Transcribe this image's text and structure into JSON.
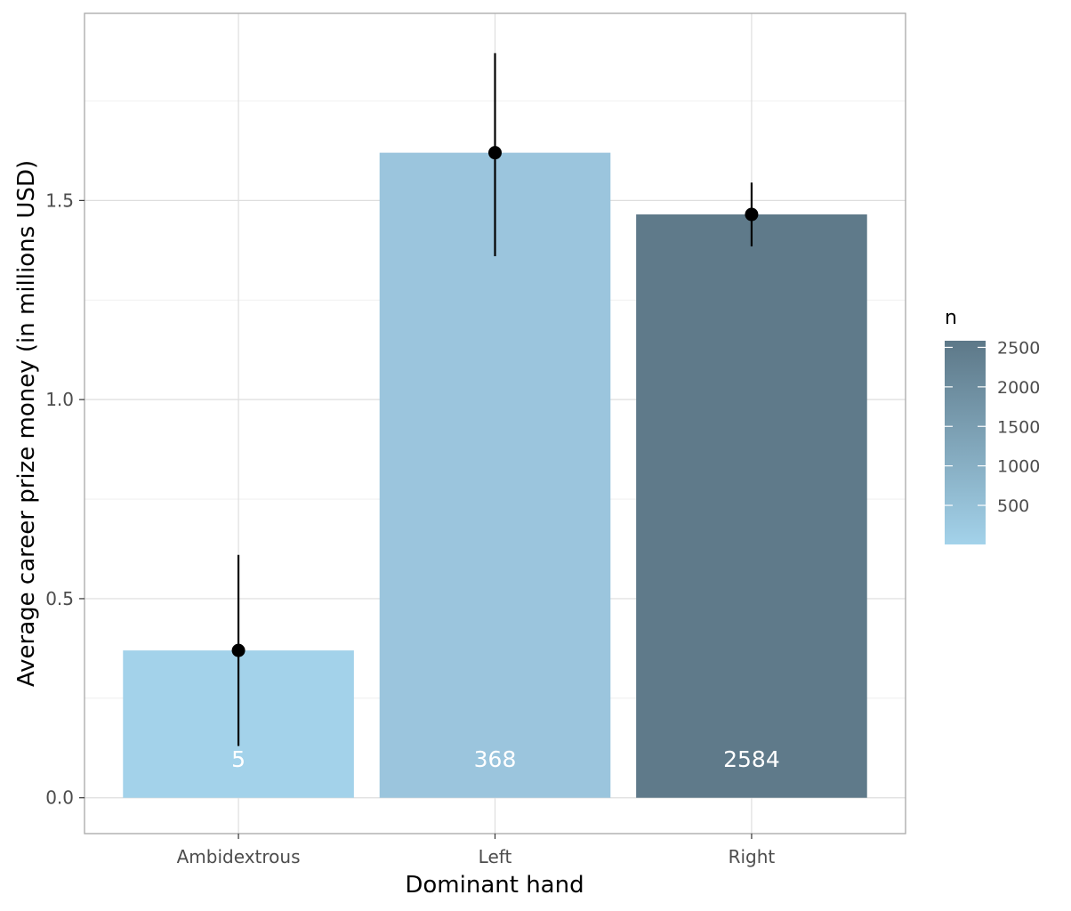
{
  "chart_data": {
    "type": "bar",
    "title": "",
    "xlabel": "Dominant hand",
    "ylabel": "Average career prize money (in millions USD)",
    "categories": [
      "Ambidextrous",
      "Left",
      "Right"
    ],
    "values": [
      0.37,
      1.62,
      1.465
    ],
    "error_lower": [
      0.13,
      1.36,
      1.385
    ],
    "error_upper": [
      0.61,
      1.87,
      1.545
    ],
    "counts": [
      5,
      368,
      2584
    ],
    "count_labels": [
      "5",
      "368",
      "2584"
    ],
    "ylim": [
      -0.09,
      1.97
    ],
    "y_ticks": [
      0.0,
      0.5,
      1.0,
      1.5
    ],
    "y_tick_labels": [
      "0.0",
      "0.5",
      "1.0",
      "1.5"
    ],
    "grid": true,
    "legend": {
      "title": "n",
      "placement": "right",
      "type": "colorbar",
      "range": [
        5,
        2584
      ],
      "ticks": [
        500,
        1000,
        1500,
        2000,
        2500
      ],
      "tick_labels": [
        "500",
        "1000",
        "1500",
        "2000",
        "2500"
      ],
      "color_low": "#a3d2ea",
      "color_high": "#5d7888"
    },
    "bar_colors": [
      "#a3d2ea",
      "#9bc5dd",
      "#5f7a8a"
    ],
    "point_color": "#000000"
  }
}
